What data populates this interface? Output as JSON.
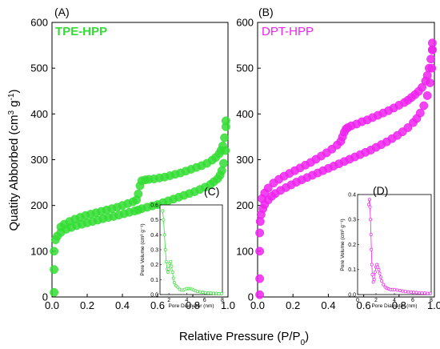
{
  "figure": {
    "ylabel_main": "Quatity Abborbed (cm",
    "ylabel_sup": "3",
    "ylabel_mid": " g",
    "ylabel_sup2": "-1",
    "ylabel_end": ")",
    "xlabel_main": "Relative Pressure (P/P",
    "xlabel_sub": "0",
    "xlabel_end": ")"
  },
  "chart_data": [
    {
      "id": "A",
      "panel_label": "(A)",
      "type": "scatter",
      "series_label": "TPE-HPP",
      "color": "#33dd33",
      "xlim": [
        0,
        1
      ],
      "ylim": [
        0,
        600
      ],
      "x_ticks": [
        "0.0",
        "0.2",
        "0.4",
        "0.6",
        "0.8",
        "1.0"
      ],
      "y_ticks": [
        "0",
        "100",
        "200",
        "300",
        "400",
        "500",
        "600"
      ],
      "series": [
        {
          "name": "adsorption",
          "x": [
            0.002,
            0.005,
            0.01,
            0.02,
            0.03,
            0.05,
            0.08,
            0.11,
            0.14,
            0.17,
            0.2,
            0.23,
            0.26,
            0.29,
            0.32,
            0.35,
            0.38,
            0.41,
            0.44,
            0.47,
            0.49,
            0.51,
            0.54,
            0.57,
            0.6,
            0.63,
            0.66,
            0.69,
            0.72,
            0.75,
            0.78,
            0.81,
            0.84,
            0.87,
            0.9,
            0.92,
            0.94,
            0.955,
            0.965,
            0.975,
            0.985,
            0.99
          ],
          "y": [
            10,
            60,
            100,
            125,
            133,
            141,
            148,
            152,
            156,
            159,
            162,
            165,
            168,
            171,
            174,
            176,
            179,
            182,
            185,
            188,
            190,
            193,
            196,
            199,
            202,
            206,
            210,
            214,
            218,
            222,
            226,
            230,
            235,
            240,
            246,
            252,
            258,
            266,
            276,
            292,
            320,
            372
          ]
        },
        {
          "name": "desorption",
          "x": [
            0.99,
            0.98,
            0.97,
            0.96,
            0.95,
            0.93,
            0.91,
            0.88,
            0.85,
            0.82,
            0.79,
            0.76,
            0.73,
            0.7,
            0.67,
            0.64,
            0.61,
            0.58,
            0.55,
            0.53,
            0.51,
            0.5,
            0.49,
            0.48,
            0.46,
            0.43,
            0.4,
            0.37,
            0.34,
            0.31,
            0.28,
            0.25,
            0.22,
            0.19,
            0.16,
            0.13,
            0.1,
            0.07,
            0.05
          ],
          "y": [
            385,
            348,
            330,
            320,
            313,
            305,
            299,
            292,
            287,
            283,
            279,
            275,
            271,
            268,
            265,
            262,
            260,
            258,
            257,
            256,
            254,
            243,
            225,
            212,
            208,
            204,
            200,
            196,
            193,
            190,
            187,
            184,
            181,
            178,
            174,
            170,
            165,
            159,
            153
          ]
        }
      ],
      "inset": {
        "panel_label": "(C)",
        "xlabel": "Pore Diameter (nm)",
        "ylabel": "Pore Volume (cm³ g⁻¹)",
        "xlim": [
          1,
          8
        ],
        "ylim": [
          0,
          0.6
        ],
        "x_ticks": [
          "2",
          "4",
          "6",
          "8"
        ],
        "y_ticks": [
          "0.0",
          "0.1",
          "0.2",
          "0.3",
          "0.4",
          "0.5",
          "0.6"
        ],
        "x": [
          1.3,
          1.4,
          1.5,
          1.6,
          1.7,
          1.8,
          1.9,
          2.0,
          2.1,
          2.2,
          2.3,
          2.4,
          2.5,
          2.6,
          2.8,
          3.0,
          3.2,
          3.4,
          3.6,
          3.8,
          4.0,
          4.2,
          4.4,
          4.6,
          4.8,
          5.0,
          5.2,
          5.5,
          5.8,
          6.1,
          6.4,
          6.7,
          7.0,
          7.3,
          7.6,
          7.9
        ],
        "y": [
          0.56,
          0.5,
          0.4,
          0.3,
          0.22,
          0.17,
          0.15,
          0.17,
          0.21,
          0.22,
          0.19,
          0.15,
          0.11,
          0.08,
          0.06,
          0.05,
          0.035,
          0.03,
          0.03,
          0.035,
          0.04,
          0.04,
          0.04,
          0.035,
          0.03,
          0.025,
          0.02,
          0.018,
          0.015,
          0.012,
          0.01,
          0.01,
          0.008,
          0.008,
          0.007,
          0.006
        ]
      }
    },
    {
      "id": "B",
      "panel_label": "(B)",
      "type": "scatter",
      "series_label": "DPT-HPP",
      "color": "#ee22ee",
      "xlim": [
        0,
        1
      ],
      "ylim": [
        0,
        600
      ],
      "x_ticks": [
        "0.0",
        "0.2",
        "0.4",
        "0.6",
        "0.8",
        "1.0"
      ],
      "y_ticks": [
        "0",
        "100",
        "200",
        "300",
        "400",
        "500",
        "600"
      ],
      "series": [
        {
          "name": "adsorption",
          "x": [
            0.002,
            0.004,
            0.007,
            0.01,
            0.015,
            0.02,
            0.03,
            0.04,
            0.06,
            0.08,
            0.1,
            0.13,
            0.16,
            0.19,
            0.22,
            0.25,
            0.28,
            0.31,
            0.34,
            0.37,
            0.4,
            0.43,
            0.46,
            0.49,
            0.52,
            0.55,
            0.58,
            0.61,
            0.64,
            0.67,
            0.7,
            0.73,
            0.76,
            0.79,
            0.82,
            0.85,
            0.88,
            0.9,
            0.92,
            0.94,
            0.96,
            0.975,
            0.985,
            0.993
          ],
          "y": [
            5,
            40,
            100,
            140,
            165,
            180,
            193,
            202,
            212,
            220,
            226,
            233,
            239,
            245,
            251,
            256,
            261,
            266,
            271,
            276,
            281,
            286,
            291,
            296,
            301,
            306,
            311,
            316,
            321,
            327,
            333,
            339,
            346,
            353,
            361,
            370,
            381,
            390,
            402,
            418,
            440,
            468,
            500,
            540
          ]
        },
        {
          "name": "desorption",
          "x": [
            0.995,
            0.99,
            0.98,
            0.97,
            0.96,
            0.95,
            0.93,
            0.91,
            0.89,
            0.87,
            0.85,
            0.83,
            0.8,
            0.77,
            0.74,
            0.71,
            0.68,
            0.65,
            0.62,
            0.59,
            0.56,
            0.53,
            0.51,
            0.5,
            0.49,
            0.48,
            0.47,
            0.45,
            0.42,
            0.39,
            0.36,
            0.33,
            0.3,
            0.27,
            0.24,
            0.21,
            0.18,
            0.15,
            0.12,
            0.09,
            0.06,
            0.04,
            0.025
          ],
          "y": [
            555,
            540,
            520,
            500,
            484,
            472,
            458,
            449,
            442,
            436,
            430,
            425,
            419,
            413,
            407,
            402,
            397,
            392,
            387,
            383,
            378,
            374,
            370,
            367,
            360,
            350,
            340,
            332,
            323,
            315,
            308,
            301,
            294,
            288,
            282,
            276,
            270,
            264,
            257,
            249,
            238,
            227,
            215
          ]
        }
      ],
      "inset": {
        "panel_label": "(D)",
        "xlabel": "Pore Diameter (nm)",
        "ylabel": "Pore Volume (cm³ g⁻¹)",
        "xlim": [
          0,
          8
        ],
        "ylim": [
          0,
          0.4
        ],
        "x_ticks": [
          "0",
          "2",
          "4",
          "6",
          "8"
        ],
        "y_ticks": [
          "0.0",
          "0.1",
          "0.2",
          "0.3",
          "0.4"
        ],
        "x": [
          1.2,
          1.3,
          1.35,
          1.4,
          1.45,
          1.5,
          1.55,
          1.6,
          1.7,
          1.8,
          1.9,
          2.0,
          2.1,
          2.2,
          2.3,
          2.4,
          2.5,
          2.6,
          2.8,
          3.0,
          3.2,
          3.4,
          3.6,
          3.8,
          4.0,
          4.3,
          4.6,
          4.9,
          5.2,
          5.5,
          5.8,
          6.1,
          6.4,
          6.7,
          7.0,
          7.3,
          7.6,
          7.9
        ],
        "y": [
          0.36,
          0.38,
          0.35,
          0.3,
          0.24,
          0.18,
          0.12,
          0.08,
          0.05,
          0.06,
          0.09,
          0.11,
          0.12,
          0.11,
          0.1,
          0.085,
          0.07,
          0.055,
          0.04,
          0.03,
          0.025,
          0.022,
          0.02,
          0.02,
          0.02,
          0.018,
          0.016,
          0.014,
          0.012,
          0.011,
          0.01,
          0.009,
          0.008,
          0.007,
          0.006,
          0.006,
          0.005,
          0.005
        ]
      }
    }
  ]
}
